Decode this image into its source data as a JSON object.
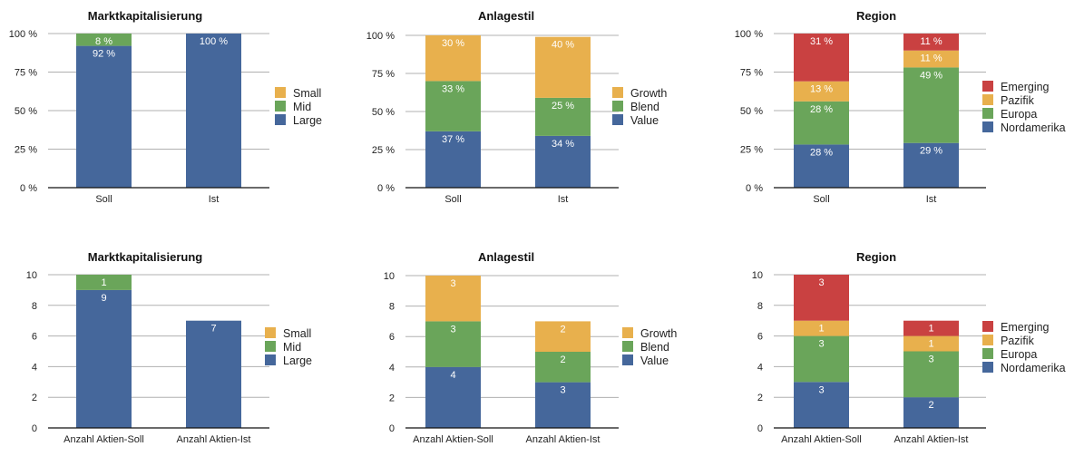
{
  "colors": {
    "Large": "#45679b",
    "Mid": "#6aa55a",
    "Small": "#e8b04d",
    "Value": "#45679b",
    "Blend": "#6aa55a",
    "Growth": "#e8b04d",
    "Nordamerika": "#45679b",
    "Europa": "#6aa55a",
    "Pazifik": "#e8b04d",
    "Emerging": "#c94141"
  },
  "chart_data": [
    {
      "type": "bar",
      "stacked": true,
      "title": "Marktkapitalisierung",
      "categories": [
        "Soll",
        "Ist"
      ],
      "yticks": [
        "0 %",
        "25 %",
        "50 %",
        "75 %",
        "100 %"
      ],
      "ylim": [
        0,
        100
      ],
      "series": [
        {
          "name": "Large",
          "values": [
            92,
            100
          ],
          "labels": [
            "92 %",
            "100 %"
          ]
        },
        {
          "name": "Mid",
          "values": [
            8,
            0
          ],
          "labels": [
            "8 %",
            ""
          ]
        },
        {
          "name": "Small",
          "values": [
            0,
            0
          ],
          "labels": [
            "",
            ""
          ]
        }
      ],
      "legend": [
        "Small",
        "Mid",
        "Large"
      ],
      "legend_position": "right"
    },
    {
      "type": "bar",
      "stacked": true,
      "title": "Anlagestil",
      "categories": [
        "Soll",
        "Ist"
      ],
      "yticks": [
        "0 %",
        "25 %",
        "50 %",
        "75 %",
        "100 %"
      ],
      "ylim": [
        0,
        100
      ],
      "series": [
        {
          "name": "Value",
          "values": [
            37,
            34
          ],
          "labels": [
            "37 %",
            "34 %"
          ]
        },
        {
          "name": "Blend",
          "values": [
            33,
            25
          ],
          "labels": [
            "33 %",
            "25 %"
          ]
        },
        {
          "name": "Growth",
          "values": [
            30,
            40
          ],
          "labels": [
            "30 %",
            "40 %"
          ]
        }
      ],
      "legend": [
        "Growth",
        "Blend",
        "Value"
      ],
      "legend_position": "right"
    },
    {
      "type": "bar",
      "stacked": true,
      "title": "Region",
      "categories": [
        "Soll",
        "Ist"
      ],
      "yticks": [
        "0 %",
        "25 %",
        "50 %",
        "75 %",
        "100 %"
      ],
      "ylim": [
        0,
        100
      ],
      "series": [
        {
          "name": "Nordamerika",
          "values": [
            28,
            29
          ],
          "labels": [
            "28 %",
            "29 %"
          ]
        },
        {
          "name": "Europa",
          "values": [
            28,
            49
          ],
          "labels": [
            "28 %",
            "49 %"
          ]
        },
        {
          "name": "Pazifik",
          "values": [
            13,
            11
          ],
          "labels": [
            "13 %",
            "11 %"
          ]
        },
        {
          "name": "Emerging",
          "values": [
            31,
            11
          ],
          "labels": [
            "31 %",
            "11 %"
          ]
        }
      ],
      "legend": [
        "Emerging",
        "Pazifik",
        "Europa",
        "Nordamerika"
      ],
      "legend_position": "right"
    },
    {
      "type": "bar",
      "stacked": true,
      "title": "Marktkapitalisierung",
      "categories": [
        "Anzahl Aktien-Soll",
        "Anzahl Aktien-Ist"
      ],
      "yticks": [
        "0",
        "2",
        "4",
        "6",
        "8",
        "10"
      ],
      "ylim": [
        0,
        10
      ],
      "series": [
        {
          "name": "Large",
          "values": [
            9,
            7
          ],
          "labels": [
            "9",
            "7"
          ]
        },
        {
          "name": "Mid",
          "values": [
            1,
            0
          ],
          "labels": [
            "1",
            ""
          ]
        },
        {
          "name": "Small",
          "values": [
            0,
            0
          ],
          "labels": [
            "",
            ""
          ]
        }
      ],
      "legend": [
        "Small",
        "Mid",
        "Large"
      ],
      "legend_position": "right"
    },
    {
      "type": "bar",
      "stacked": true,
      "title": "Anlagestil",
      "categories": [
        "Anzahl Aktien-Soll",
        "Anzahl Aktien-Ist"
      ],
      "yticks": [
        "0",
        "2",
        "4",
        "6",
        "8",
        "10"
      ],
      "ylim": [
        0,
        10
      ],
      "series": [
        {
          "name": "Value",
          "values": [
            4,
            3
          ],
          "labels": [
            "4",
            "3"
          ]
        },
        {
          "name": "Blend",
          "values": [
            3,
            2
          ],
          "labels": [
            "3",
            "2"
          ]
        },
        {
          "name": "Growth",
          "values": [
            3,
            2
          ],
          "labels": [
            "3",
            "2"
          ]
        }
      ],
      "legend": [
        "Growth",
        "Blend",
        "Value"
      ],
      "legend_position": "right"
    },
    {
      "type": "bar",
      "stacked": true,
      "title": "Region",
      "categories": [
        "Anzahl Aktien-Soll",
        "Anzahl Aktien-Ist"
      ],
      "yticks": [
        "0",
        "2",
        "4",
        "6",
        "8",
        "10"
      ],
      "ylim": [
        0,
        10
      ],
      "series": [
        {
          "name": "Nordamerika",
          "values": [
            3,
            2
          ],
          "labels": [
            "3",
            "2"
          ]
        },
        {
          "name": "Europa",
          "values": [
            3,
            3
          ],
          "labels": [
            "3",
            "3"
          ]
        },
        {
          "name": "Pazifik",
          "values": [
            1,
            1
          ],
          "labels": [
            "1",
            "1"
          ]
        },
        {
          "name": "Emerging",
          "values": [
            3,
            1
          ],
          "labels": [
            "3",
            "1"
          ]
        }
      ],
      "legend": [
        "Emerging",
        "Pazifik",
        "Europa",
        "Nordamerika"
      ],
      "legend_position": "right"
    }
  ]
}
